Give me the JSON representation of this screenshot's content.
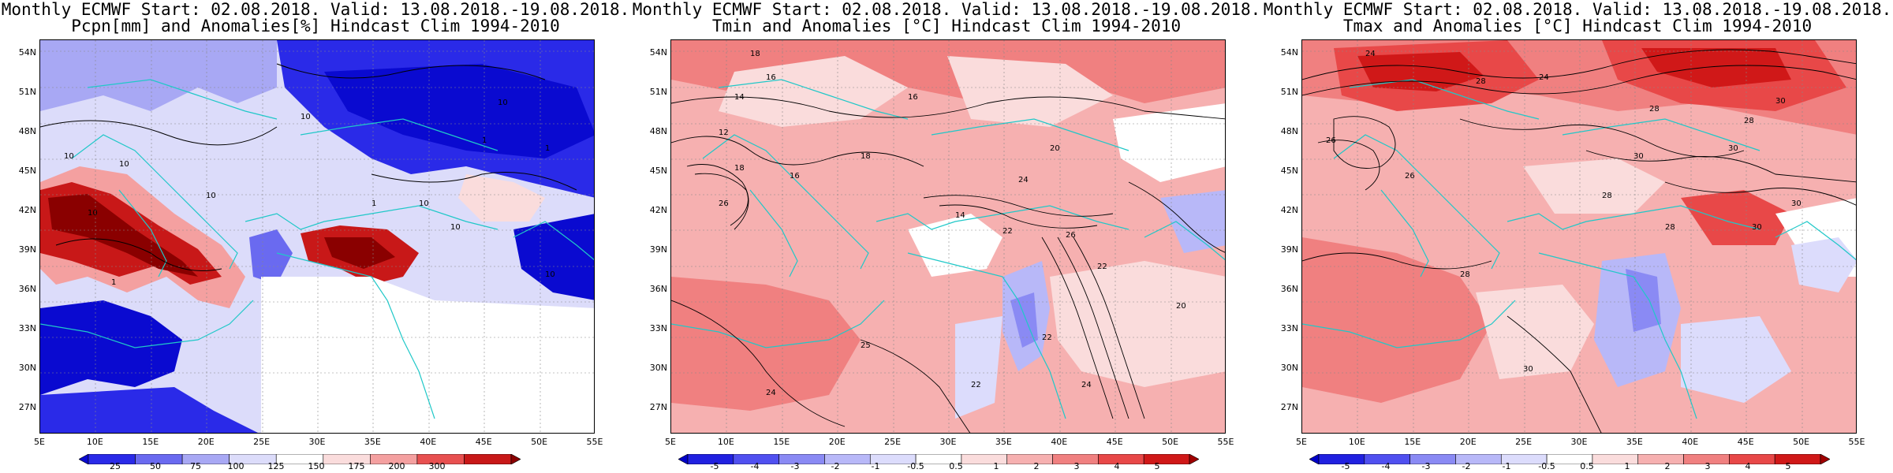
{
  "panels": [
    {
      "title_line1": "Monthly ECMWF Start: 02.08.2018. Valid: 13.08.2018.-19.08.2018.",
      "title_line2": "Pcpn[mm] and Anomalies[%] Hindcast Clim 1994-2010",
      "variable": "precipitation anomaly",
      "colorbar_labels": [
        "25",
        "50",
        "75",
        "100",
        "125",
        "150",
        "175",
        "200",
        "300"
      ],
      "colorbar_colors": [
        "#0a0ad0",
        "#2a2ae8",
        "#6a6af0",
        "#a8a8f4",
        "#dcdcfa",
        "#ffffff",
        "#fadcdc",
        "#f4a0a0",
        "#e85050",
        "#c81818",
        "#8a0000"
      ],
      "contour_labels": [
        "10",
        "10",
        "10",
        "10",
        "10",
        "1",
        "1",
        "1",
        "1",
        "10",
        "10",
        "10",
        "10"
      ]
    },
    {
      "title_line1": "Monthly ECMWF Start: 02.08.2018. Valid: 13.08.2018.-19.08.2018.",
      "title_line2": "Tmin and Anomalies [°C] Hindcast Clim 1994-2010",
      "variable": "minimum temperature anomaly",
      "colorbar_labels": [
        "-5",
        "-4",
        "-3",
        "-2",
        "-1",
        "-0.5",
        "0.5",
        "1",
        "2",
        "3",
        "4",
        "5"
      ],
      "colorbar_colors": [
        "#0000c8",
        "#2020e0",
        "#5050f0",
        "#8a8af4",
        "#b8b8f8",
        "#dcdcfc",
        "#ffffff",
        "#fadcdc",
        "#f6b0b0",
        "#f08080",
        "#e84848",
        "#d01818",
        "#a00000"
      ],
      "contour_labels": [
        "18",
        "16",
        "14",
        "16",
        "12",
        "18",
        "16",
        "14",
        "18",
        "20",
        "22",
        "24",
        "26",
        "22",
        "20",
        "22",
        "24",
        "26",
        "25",
        "24",
        "22"
      ]
    },
    {
      "title_line1": "Monthly ECMWF Start: 02.08.2018. Valid: 13.08.2018.-19.08.2018.",
      "title_line2": "Tmax and Anomalies [°C] Hindcast Clim 1994-2010",
      "variable": "maximum temperature anomaly",
      "colorbar_labels": [
        "-5",
        "-4",
        "-3",
        "-2",
        "-1",
        "-0.5",
        "0.5",
        "1",
        "2",
        "3",
        "4",
        "5"
      ],
      "colorbar_colors": [
        "#0000c8",
        "#2020e0",
        "#5050f0",
        "#8a8af4",
        "#b8b8f8",
        "#dcdcfc",
        "#ffffff",
        "#fadcdc",
        "#f6b0b0",
        "#f08080",
        "#e84848",
        "#d01818",
        "#a00000"
      ],
      "contour_labels": [
        "24",
        "26",
        "28",
        "24",
        "30",
        "28",
        "30",
        "26",
        "28",
        "30",
        "28",
        "30",
        "28",
        "30",
        "28",
        "30"
      ]
    }
  ],
  "axes": {
    "lat_labels": [
      "54N",
      "51N",
      "48N",
      "45N",
      "42N",
      "39N",
      "36N",
      "33N",
      "30N",
      "27N"
    ],
    "lon_labels": [
      "5E",
      "10E",
      "15E",
      "20E",
      "25E",
      "30E",
      "35E",
      "40E",
      "45E",
      "50E",
      "55E"
    ],
    "lat_range": [
      25,
      55
    ],
    "lon_range": [
      5,
      55
    ]
  },
  "styles": {
    "coastline_color": "#20c8c8",
    "contour_color": "#000000",
    "grid_color": "#888888"
  }
}
